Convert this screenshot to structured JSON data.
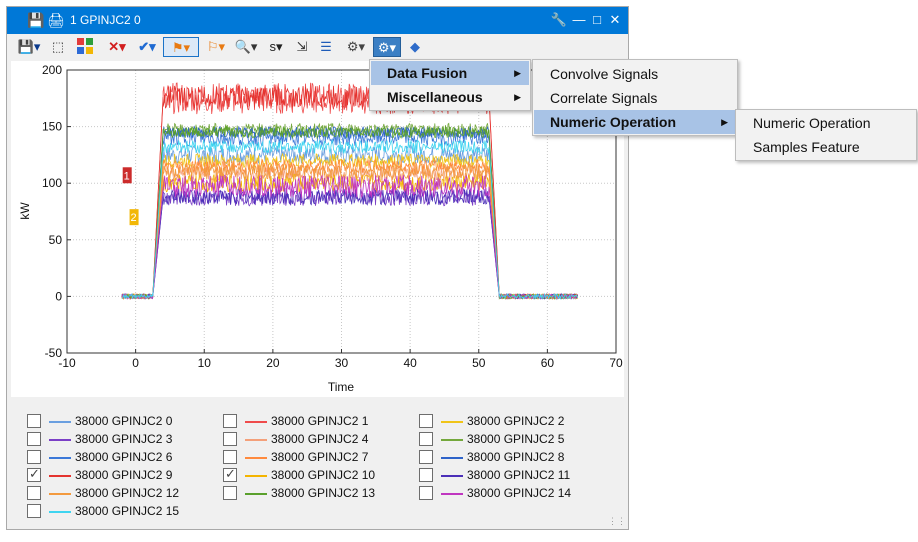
{
  "window": {
    "title": "1 GPINJC2 0",
    "icons": [
      "save-icon",
      "print-icon",
      "wrench-icon",
      "minimize-icon",
      "restore-icon",
      "close-icon"
    ]
  },
  "toolbar": {
    "s_label": "s",
    "buttons": [
      "save",
      "select-region",
      "color-palette",
      "delete",
      "check",
      "flag-marker",
      "marker-alt",
      "zoom",
      "s-dropdown",
      "shrink",
      "align",
      "processing-gear",
      "processing-menu",
      "python"
    ]
  },
  "chart_data": {
    "type": "line",
    "xlabel": "Time",
    "ylabel": "kW",
    "xlim": [
      -10,
      70
    ],
    "ylim": [
      -50,
      200
    ],
    "xticks": [
      -10,
      0,
      10,
      20,
      30,
      40,
      50,
      60,
      70
    ],
    "yticks": [
      -50,
      0,
      50,
      100,
      150,
      200
    ],
    "grid": true,
    "x_profile": [
      -2,
      2.5,
      4,
      51.5,
      53,
      64.5
    ],
    "series": [
      {
        "name": "38000 GPINJC2 0",
        "color": "#6a9fe0",
        "level": 125,
        "noise": 8
      },
      {
        "name": "38000 GPINJC2 1",
        "color": "#ef4b4b",
        "level": 175,
        "noise": 14
      },
      {
        "name": "38000 GPINJC2 2",
        "color": "#f0c419",
        "level": 120,
        "noise": 6
      },
      {
        "name": "38000 GPINJC2 3",
        "color": "#7b3fc6",
        "level": 88,
        "noise": 8
      },
      {
        "name": "38000 GPINJC2 4",
        "color": "#f4a07a",
        "level": 108,
        "noise": 7
      },
      {
        "name": "38000 GPINJC2 5",
        "color": "#74a83c",
        "level": 147,
        "noise": 6
      },
      {
        "name": "38000 GPINJC2 6",
        "color": "#3b78d8",
        "level": 140,
        "noise": 7
      },
      {
        "name": "38000 GPINJC2 7",
        "color": "#ff8a3d",
        "level": 115,
        "noise": 6
      },
      {
        "name": "38000 GPINJC2 8",
        "color": "#2e63c9",
        "level": 145,
        "noise": 5
      },
      {
        "name": "38000 GPINJC2 9",
        "color": "#e4332f",
        "level": 176,
        "noise": 10
      },
      {
        "name": "38000 GPINJC2 10",
        "color": "#f4b400",
        "level": 100,
        "noise": 8
      },
      {
        "name": "38000 GPINJC2 11",
        "color": "#4b2fb8",
        "level": 88,
        "noise": 7
      },
      {
        "name": "38000 GPINJC2 12",
        "color": "#f39a3e",
        "level": 110,
        "noise": 7
      },
      {
        "name": "38000 GPINJC2 13",
        "color": "#5aa02c",
        "level": 145,
        "noise": 5
      },
      {
        "name": "38000 GPINJC2 14",
        "color": "#c036c0",
        "level": 97,
        "noise": 10
      },
      {
        "name": "38000 GPINJC2 15",
        "color": "#3ed4f0",
        "level": 132,
        "noise": 6
      }
    ],
    "markers": [
      {
        "label": "1",
        "x": -1.3,
        "y": 107,
        "color": "#cc2b2b"
      },
      {
        "label": "2",
        "x": -0.3,
        "y": 70,
        "color": "#f2b705"
      }
    ]
  },
  "legend": {
    "items": [
      {
        "label": "38000 GPINJC2 0",
        "checked": false,
        "color": "#6a9fe0"
      },
      {
        "label": "38000 GPINJC2 1",
        "checked": false,
        "color": "#ef4b4b"
      },
      {
        "label": "38000 GPINJC2 2",
        "checked": false,
        "color": "#f0c419"
      },
      {
        "label": "38000 GPINJC2 3",
        "checked": false,
        "color": "#7b3fc6"
      },
      {
        "label": "38000 GPINJC2 4",
        "checked": false,
        "color": "#f4a07a"
      },
      {
        "label": "38000 GPINJC2 5",
        "checked": false,
        "color": "#74a83c"
      },
      {
        "label": "38000 GPINJC2 6",
        "checked": false,
        "color": "#3b78d8"
      },
      {
        "label": "38000 GPINJC2 7",
        "checked": false,
        "color": "#ff8a3d"
      },
      {
        "label": "38000 GPINJC2 8",
        "checked": false,
        "color": "#2e63c9"
      },
      {
        "label": "38000 GPINJC2 9",
        "checked": true,
        "color": "#e4332f"
      },
      {
        "label": "38000 GPINJC2 10",
        "checked": true,
        "color": "#f4b400"
      },
      {
        "label": "38000 GPINJC2 11",
        "checked": false,
        "color": "#4b2fb8"
      },
      {
        "label": "38000 GPINJC2 12",
        "checked": false,
        "color": "#f39a3e"
      },
      {
        "label": "38000 GPINJC2 13",
        "checked": false,
        "color": "#5aa02c"
      },
      {
        "label": "38000 GPINJC2 14",
        "checked": false,
        "color": "#c036c0"
      },
      {
        "label": "38000 GPINJC2 15",
        "checked": false,
        "color": "#3ed4f0"
      }
    ]
  },
  "menus": {
    "level1": [
      {
        "label": "Data Fusion",
        "highlighted": true,
        "submenu": true
      },
      {
        "label": "Miscellaneous",
        "highlighted": false,
        "submenu": true
      }
    ],
    "level2": [
      {
        "label": "Convolve Signals",
        "highlighted": false,
        "submenu": false
      },
      {
        "label": "Correlate Signals",
        "highlighted": false,
        "submenu": false
      },
      {
        "label": "Numeric Operation",
        "highlighted": true,
        "submenu": true
      }
    ],
    "level3": [
      {
        "label": "Numeric Operation",
        "highlighted": false,
        "submenu": false
      },
      {
        "label": "Samples Feature",
        "highlighted": false,
        "submenu": false
      }
    ]
  }
}
